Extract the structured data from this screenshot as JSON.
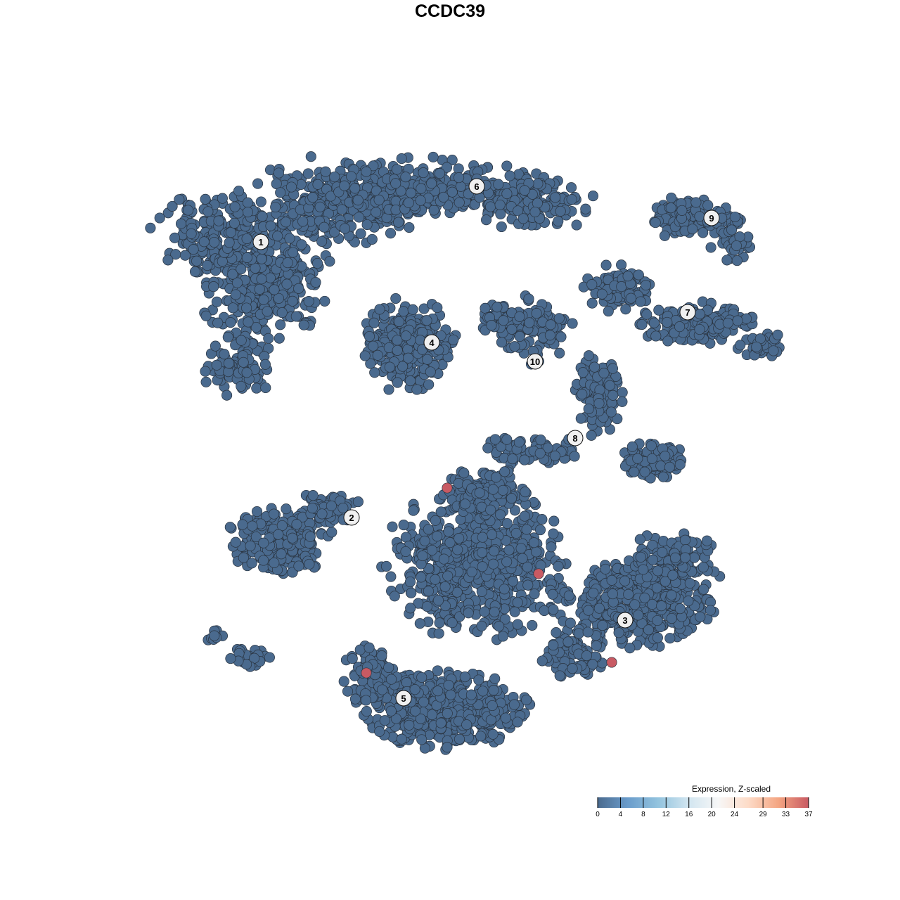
{
  "chart_data": {
    "type": "scatter",
    "title": "CCDC39",
    "xlabel": "",
    "ylabel": "",
    "grid": false,
    "cluster_labels": [
      "1",
      "2",
      "3",
      "4",
      "5",
      "6",
      "7",
      "8",
      "9",
      "10"
    ],
    "highlighted_points_value": 37,
    "base_points_value": 0,
    "colors": {
      "low": "#4a6a8e",
      "high": "#c85a63",
      "point_stroke": "#2a3440"
    },
    "legend": {
      "title": "Expression, Z-scaled",
      "placement": "bottom-right",
      "ticks": [
        "0",
        "4",
        "8",
        "12",
        "16",
        "20",
        "24",
        "29",
        "33",
        "37"
      ],
      "tick_values": [
        0,
        4,
        8,
        12,
        16,
        20,
        24,
        29,
        33,
        37
      ],
      "gradient": [
        "#4a6a8e",
        "#6a9ccb",
        "#92c3de",
        "#d1e5f0",
        "#f7f7f7",
        "#fddbc7",
        "#f4a582",
        "#c85a63"
      ]
    }
  }
}
